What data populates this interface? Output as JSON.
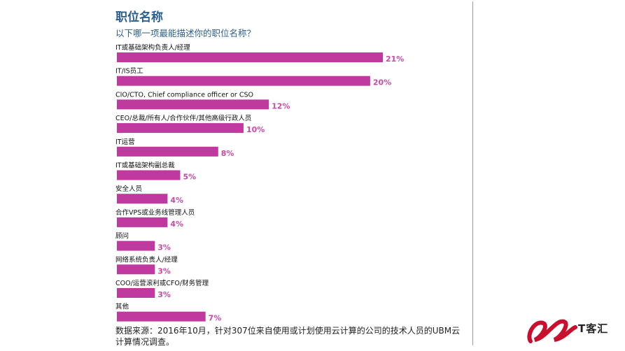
{
  "chart_data": {
    "type": "bar",
    "orientation": "horizontal",
    "title": "职位名称",
    "subtitle": "以下哪一项最能描述你的职位名称？",
    "categories": [
      "IT或基础架构负责人/经理",
      "IT/IS员工",
      "CIO/CTO, Chief compliance officer or CSO",
      "CEO/总裁/所有人/合作伙伴/其他高级行政人员",
      "IT运营",
      "IT或基础架构副总裁",
      "安全人员",
      "合作VPS或业务线管理人员",
      "顾问",
      "网络系统负责人/经理",
      "COO/运营滚利或CFO/财务管理",
      "其他"
    ],
    "values": [
      21,
      20,
      12,
      10,
      8,
      5,
      4,
      4,
      3,
      3,
      3,
      7
    ],
    "value_labels": [
      "21%",
      "20%",
      "12%",
      "10%",
      "8%",
      "5%",
      "4%",
      "4%",
      "3%",
      "3%",
      "3%",
      "7%"
    ],
    "xlim": [
      0,
      21
    ],
    "grid": false,
    "legend": "none",
    "bar_color": "#c0399f",
    "label_color": "#c84aa8"
  },
  "footer": {
    "source": "数据来源：2016年10月，针对307位来自使用或计划使用云计算的公司的技术人员的UBM云计算情况调查。"
  },
  "logo": {
    "text": "T客汇",
    "color": "#c8102e"
  }
}
